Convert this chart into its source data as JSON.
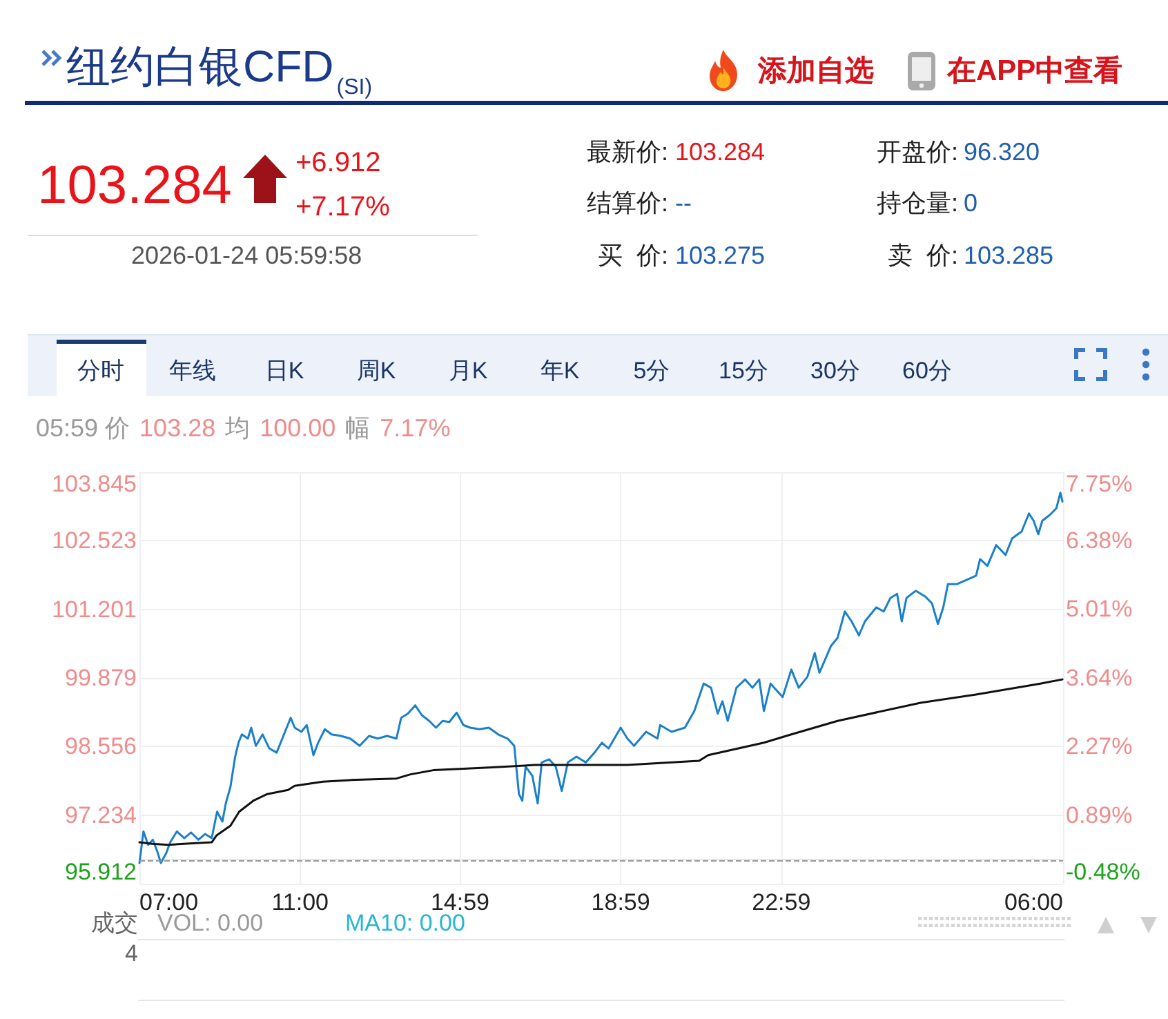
{
  "chart_data": [
    {
      "type": "other",
      "title": "纽约白银CFD$_{(SI)}$",
      "annotations": [
        "添加自选",
        "在APP中查看",
        "103.284",
        "+6.912",
        "+7.17%",
        "2026-01-24 05:59:58",
        "最新价:",
        "103.284",
        "结算价:",
        "--",
        "买  价:",
        "103.275",
        "开盘价:",
        "96.320",
        "持仓量:",
        "0",
        "卖  价:",
        "103.285"
      ]
    },
    {
      "type": "line",
      "annotations": [
        "分时",
        "年线",
        "日K",
        "周K",
        "月K",
        "年K",
        "5分",
        "15分",
        "30分",
        "60分",
        "05:59 价",
        "103.28",
        "均",
        "100.00",
        "幅",
        "7.17%",
        "成交",
        "VOL: 0.00",
        "MA10: 0.00",
        "4"
      ],
      "xlim": [
        "2026-01-23T07:00",
        "2026-01-24T06:00"
      ],
      "xticks": [
        {
          "value": "2026-01-23T07:00",
          "label": "07:00"
        },
        {
          "value": "2026-01-23T11:00",
          "label": "11:00"
        },
        {
          "value": "2026-01-23T14:59",
          "label": "14:59"
        },
        {
          "value": "2026-01-23T18:59",
          "label": "18:59"
        },
        {
          "value": "2026-01-23T22:59",
          "label": "22:59"
        },
        {
          "value": "2026-01-24T06:00",
          "label": "06:00"
        }
      ],
      "ylim": [
        95.912,
        103.845
      ],
      "yticks": [
        95.912,
        97.234,
        98.556,
        99.879,
        101.201,
        102.523,
        103.845
      ],
      "y2lim": [
        -0.48,
        7.75
      ],
      "y2ticks": [
        {
          "value": -0.48,
          "label": "-0.48%"
        },
        {
          "value": 0.89,
          "label": "0.89%"
        },
        {
          "value": 2.27,
          "label": "2.27%"
        },
        {
          "value": 3.64,
          "label": "3.64%"
        },
        {
          "value": 5.01,
          "label": "5.01%"
        },
        {
          "value": 6.38,
          "label": "6.38%"
        },
        {
          "value": 7.75,
          "label": "7.75%"
        }
      ],
      "grid": true,
      "ref_lines": [
        {
          "axis": "y",
          "value": 96.372,
          "color": "#999999",
          "line_style": "dashed"
        }
      ],
      "series": [
        {
          "color": "#1a80cc",
          "x": [
            "2026-01-23T07:00",
            "2026-01-23T07:06",
            "2026-01-23T07:13",
            "2026-01-23T07:20",
            "2026-01-23T07:27",
            "2026-01-23T07:32",
            "2026-01-23T07:40",
            "2026-01-23T07:46",
            "2026-01-23T07:56",
            "2026-01-23T08:07",
            "2026-01-23T08:17",
            "2026-01-23T08:28",
            "2026-01-23T08:38",
            "2026-01-23T08:48",
            "2026-01-23T08:56",
            "2026-01-23T09:04",
            "2026-01-23T09:09",
            "2026-01-23T09:16",
            "2026-01-23T09:23",
            "2026-01-23T09:28",
            "2026-01-23T09:33",
            "2026-01-23T09:42",
            "2026-01-23T09:47",
            "2026-01-23T09:54",
            "2026-01-23T10:04",
            "2026-01-23T10:14",
            "2026-01-23T10:25",
            "2026-01-23T10:35",
            "2026-01-23T10:46",
            "2026-01-23T10:52",
            "2026-01-23T11:02",
            "2026-01-23T11:10",
            "2026-01-23T11:20",
            "2026-01-23T11:27",
            "2026-01-23T11:37",
            "2026-01-23T11:47",
            "2026-01-23T12:01",
            "2026-01-23T12:15",
            "2026-01-23T12:29",
            "2026-01-23T12:43",
            "2026-01-23T12:56",
            "2026-01-23T13:10",
            "2026-01-23T13:24",
            "2026-01-23T13:31",
            "2026-01-23T13:41",
            "2026-01-23T13:52",
            "2026-01-23T14:02",
            "2026-01-23T14:13",
            "2026-01-23T14:23",
            "2026-01-23T14:33",
            "2026-01-23T14:43",
            "2026-01-23T14:54",
            "2026-01-23T15:04",
            "2026-01-23T15:14",
            "2026-01-23T15:28",
            "2026-01-23T15:42",
            "2026-01-23T15:56",
            "2026-01-23T16:10",
            "2026-01-23T16:20",
            "2026-01-23T16:27",
            "2026-01-23T16:32",
            "2026-01-23T16:37",
            "2026-01-23T16:47",
            "2026-01-23T16:55",
            "2026-01-23T17:01",
            "2026-01-23T17:12",
            "2026-01-23T17:22",
            "2026-01-23T17:31",
            "2026-01-23T17:40",
            "2026-01-23T17:53",
            "2026-01-23T18:07",
            "2026-01-23T18:20",
            "2026-01-23T18:31",
            "2026-01-23T18:41",
            "2026-01-23T18:59",
            "2026-01-23T19:09",
            "2026-01-23T19:19",
            "2026-01-23T19:37",
            "2026-01-23T19:54",
            "2026-01-23T19:58",
            "2026-01-23T20:15",
            "2026-01-23T20:35",
            "2026-01-23T20:49",
            "2026-01-23T21:03",
            "2026-01-23T21:14",
            "2026-01-23T21:24",
            "2026-01-23T21:31",
            "2026-01-23T21:39",
            "2026-01-23T21:52",
            "2026-01-23T22:05",
            "2026-01-23T22:16",
            "2026-01-23T22:26",
            "2026-01-23T22:33",
            "2026-01-23T22:43",
            "2026-01-23T23:01",
            "2026-01-23T23:14",
            "2026-01-23T23:25",
            "2026-01-23T23:38",
            "2026-01-23T23:49",
            "2026-01-23T23:56",
            "2026-01-24T00:13",
            "2026-01-24T00:23",
            "2026-01-24T00:34",
            "2026-01-24T00:44",
            "2026-01-24T00:55",
            "2026-01-24T01:04",
            "2026-01-24T01:21",
            "2026-01-24T01:32",
            "2026-01-24T01:42",
            "2026-01-24T01:52",
            "2026-01-24T01:59",
            "2026-01-24T02:06",
            "2026-01-24T02:20",
            "2026-01-24T02:34",
            "2026-01-24T02:44",
            "2026-01-24T02:53",
            "2026-01-24T03:01",
            "2026-01-24T03:08",
            "2026-01-24T03:22",
            "2026-01-24T03:36",
            "2026-01-24T03:50",
            "2026-01-24T03:56",
            "2026-01-24T04:07",
            "2026-01-24T04:20",
            "2026-01-24T04:34",
            "2026-01-24T04:44",
            "2026-01-24T04:58",
            "2026-01-24T05:09",
            "2026-01-24T05:16",
            "2026-01-24T05:23",
            "2026-01-24T05:29",
            "2026-01-24T05:40",
            "2026-01-24T05:50",
            "2026-01-24T05:56",
            "2026-01-24T05:59"
          ],
          "values": [
            96.31,
            96.92,
            96.66,
            96.76,
            96.52,
            96.31,
            96.5,
            96.71,
            96.92,
            96.79,
            96.9,
            96.76,
            96.87,
            96.79,
            97.3,
            97.11,
            97.46,
            97.78,
            98.36,
            98.63,
            98.79,
            98.71,
            98.92,
            98.57,
            98.79,
            98.52,
            98.44,
            98.76,
            99.11,
            98.92,
            98.84,
            98.97,
            98.39,
            98.63,
            98.89,
            98.79,
            98.76,
            98.71,
            98.57,
            98.76,
            98.71,
            98.76,
            98.71,
            99.11,
            99.19,
            99.35,
            99.16,
            99.05,
            98.92,
            99.05,
            99.03,
            99.21,
            98.97,
            98.92,
            98.89,
            98.92,
            98.79,
            98.71,
            98.57,
            97.64,
            97.51,
            98.17,
            97.99,
            97.46,
            98.25,
            98.31,
            98.17,
            97.7,
            98.25,
            98.36,
            98.25,
            98.44,
            98.63,
            98.52,
            98.92,
            98.71,
            98.57,
            98.84,
            98.71,
            98.97,
            98.84,
            98.92,
            99.24,
            99.77,
            99.69,
            99.19,
            99.43,
            99.05,
            99.69,
            99.85,
            99.69,
            99.85,
            99.24,
            99.77,
            99.51,
            100.04,
            99.69,
            99.9,
            100.36,
            99.98,
            100.49,
            100.65,
            101.16,
            100.97,
            100.7,
            100.97,
            101.24,
            101.16,
            101.42,
            101.5,
            100.97,
            101.42,
            101.56,
            101.45,
            101.32,
            100.92,
            101.24,
            101.69,
            101.69,
            101.77,
            101.85,
            102.17,
            102.04,
            102.44,
            102.25,
            102.57,
            102.7,
            103.05,
            102.91,
            102.65,
            102.91,
            103.02,
            103.15,
            103.45,
            103.28
          ]
        },
        {
          "color": "#111111",
          "x": [
            "2026-01-23T07:00",
            "2026-01-23T07:19",
            "2026-01-23T07:43",
            "2026-01-23T08:06",
            "2026-01-23T08:48",
            "2026-01-23T08:55",
            "2026-01-23T09:16",
            "2026-01-23T09:29",
            "2026-01-23T09:50",
            "2026-01-23T10:11",
            "2026-01-23T10:42",
            "2026-01-23T10:52",
            "2026-01-23T11:34",
            "2026-01-23T12:15",
            "2026-01-23T13:24",
            "2026-01-23T13:45",
            "2026-01-23T14:19",
            "2026-01-23T15:42",
            "2026-01-23T16:51",
            "2026-01-23T19:09",
            "2026-01-23T20:56",
            "2026-01-23T21:10",
            "2026-01-23T22:33",
            "2026-01-23T23:14",
            "2026-01-24T00:23",
            "2026-01-24T02:27",
            "2026-01-24T03:50",
            "2026-01-24T05:26",
            "2026-01-24T05:59"
          ],
          "values": [
            96.71,
            96.68,
            96.66,
            96.68,
            96.71,
            96.84,
            97.03,
            97.3,
            97.51,
            97.64,
            97.72,
            97.8,
            97.88,
            97.91,
            97.94,
            98.02,
            98.1,
            98.15,
            98.2,
            98.2,
            98.28,
            98.39,
            98.63,
            98.79,
            99.05,
            99.4,
            99.56,
            99.77,
            99.85
          ]
        }
      ]
    }
  ]
}
